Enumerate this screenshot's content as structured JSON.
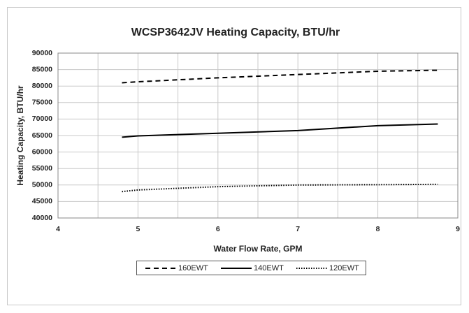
{
  "chart_data": {
    "type": "line",
    "title": "WCSP3642JV Heating Capacity, BTU/hr",
    "x_label": "Water Flow Rate, GPM",
    "y_label": "Heating Capacity, BTU/hr",
    "x": [
      4.8,
      5,
      6,
      7,
      8,
      8.75
    ],
    "series": [
      {
        "name": "160EWT",
        "color": "#000000",
        "dash": "dashed",
        "values": [
          81000,
          81300,
          82500,
          83500,
          84500,
          84800
        ]
      },
      {
        "name": "140EWT",
        "color": "#000000",
        "dash": "solid",
        "values": [
          64500,
          64900,
          65700,
          66500,
          68000,
          68500
        ]
      },
      {
        "name": "120EWT",
        "color": "#000000",
        "dash": "dotted",
        "values": [
          48000,
          48500,
          49500,
          50000,
          50100,
          50200
        ]
      }
    ],
    "xlim": [
      4,
      9
    ],
    "xticks": [
      4,
      5,
      6,
      7,
      8,
      9
    ],
    "xgrid": [
      4,
      4.5,
      5,
      5.5,
      6,
      6.5,
      7,
      7.5,
      8,
      8.5,
      9
    ],
    "ylim": [
      40000,
      90000
    ],
    "yticks": [
      40000,
      45000,
      50000,
      55000,
      60000,
      65000,
      70000,
      75000,
      80000,
      85000,
      90000
    ],
    "grid": true,
    "legend": "bottom"
  }
}
